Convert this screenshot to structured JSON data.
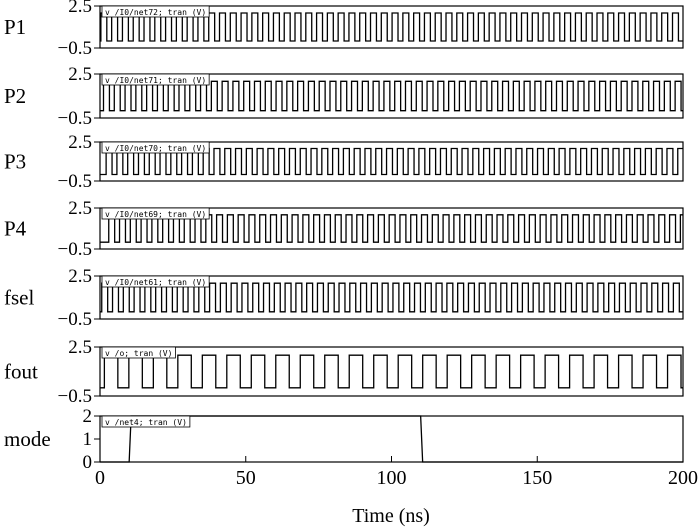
{
  "chart_data": {
    "type": "line",
    "xlabel": "Time (ns)",
    "xlim": [
      0,
      200
    ],
    "xticks": [
      0,
      50,
      100,
      150,
      200
    ],
    "grid": false,
    "rows": [
      {
        "label": "P1",
        "title": "v /I0/net72; tran (V)",
        "ylim": [
          -0.5,
          2.5
        ],
        "yticks": [
          2.5,
          -0.5
        ],
        "low": 0,
        "high": 2,
        "period_ns": 3.7,
        "duty": 0.55,
        "phase_ns": 0.3
      },
      {
        "label": "P2",
        "title": "v /I0/net71; tran (V)",
        "ylim": [
          -0.5,
          2.5
        ],
        "yticks": [
          2.5,
          -0.5
        ],
        "low": 0,
        "high": 2,
        "period_ns": 3.7,
        "duty": 0.55,
        "phase_ns": 1.2
      },
      {
        "label": "P3",
        "title": "v /I0/net70; tran (V)",
        "ylim": [
          -0.5,
          2.5
        ],
        "yticks": [
          2.5,
          -0.5
        ],
        "low": 0,
        "high": 2,
        "period_ns": 3.7,
        "duty": 0.55,
        "phase_ns": 2.1
      },
      {
        "label": "P4",
        "title": "v /I0/net69; tran (V)",
        "ylim": [
          -0.5,
          2.5
        ],
        "yticks": [
          2.5,
          -0.5
        ],
        "low": 0,
        "high": 2,
        "period_ns": 3.7,
        "duty": 0.55,
        "phase_ns": 3.0
      },
      {
        "label": "fsel",
        "title": "v /I0/net61; tran (V)",
        "ylim": [
          -0.5,
          2.5
        ],
        "yticks": [
          2.5,
          -0.5
        ],
        "low": 0,
        "high": 2,
        "period_ns": 3.7,
        "duty": 0.55,
        "phase_ns": 0.6
      },
      {
        "label": "fout",
        "title": "v /o; tran (V)",
        "ylim": [
          -0.5,
          2.5
        ],
        "yticks": [
          2.5,
          -0.5
        ],
        "low": 0,
        "high": 2,
        "period_ns": 8.4,
        "duty": 0.55,
        "phase_ns": 1.5
      },
      {
        "label": "mode",
        "title": "v /net4; tran (V)",
        "ylim": [
          0,
          2
        ],
        "yticks": [
          2,
          1,
          0
        ],
        "step": {
          "t0": 0,
          "rise_ns": 10,
          "fall_ns": 110,
          "low": 0,
          "high": 2,
          "end": 200
        }
      }
    ]
  }
}
